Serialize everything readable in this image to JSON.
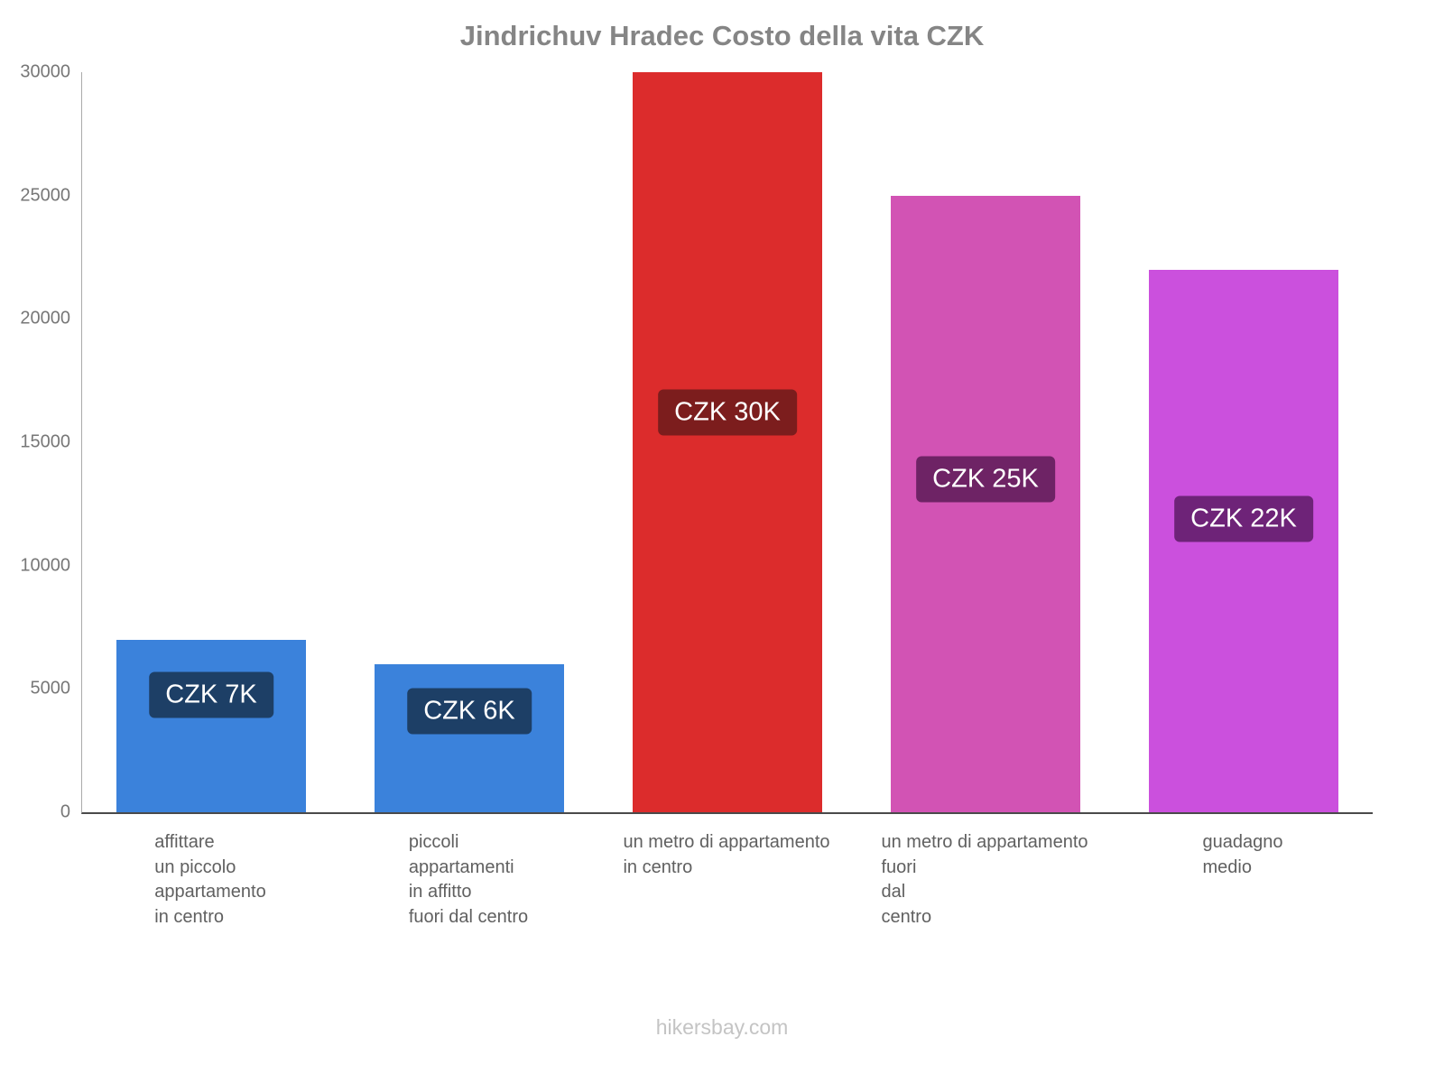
{
  "footer": "hikersbay.com",
  "chart_data": {
    "type": "bar",
    "title": "Jindrichuv Hradec Costo della vita CZK",
    "categories": [
      "affittare\nun piccolo\nappartamento\nin centro",
      "piccoli\nappartamenti\nin affitto\nfuori dal centro",
      "un metro di appartamento\nin centro",
      "un metro di appartamento\nfuori\ndal\ncentro",
      "guadagno\nmedio"
    ],
    "values": [
      7000,
      6000,
      30000,
      25000,
      22000
    ],
    "bar_labels": [
      "CZK 7K",
      "CZK 6K",
      "CZK 30K",
      "CZK 25K",
      "CZK 22K"
    ],
    "bar_colors": [
      "#3b82db",
      "#3b82db",
      "#dc2c2c",
      "#d253b4",
      "#cb50dd"
    ],
    "label_bg_colors": [
      "#1d3f66",
      "#1d3f66",
      "#7c1d1d",
      "#6e2365",
      "#6e2378"
    ],
    "xlabel": "",
    "ylabel": "",
    "ylim": [
      0,
      30000
    ],
    "yticks": [
      0,
      5000,
      10000,
      15000,
      20000,
      25000,
      30000
    ],
    "grid": false,
    "legend_position": "none"
  }
}
